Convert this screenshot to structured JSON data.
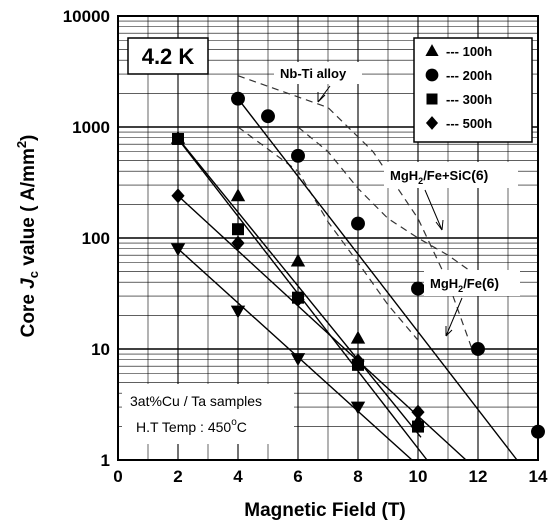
{
  "chart_data": {
    "type": "scatter",
    "xlabel": "Magnetic Field (T)",
    "ylabel_prefix": "Core ",
    "ylabel_italic": "J",
    "ylabel_sub": "c",
    "ylabel_suffix": " value ( A/mm",
    "ylabel_sup": "2",
    "ylabel_end": ")",
    "xlim": [
      0,
      14
    ],
    "ylim": [
      1,
      10000
    ],
    "yscale": "log",
    "grid": true,
    "xticks": [
      "0",
      "2",
      "4",
      "6",
      "8",
      "10",
      "12",
      "14"
    ],
    "yticks": [
      "1",
      "10",
      "100",
      "1000",
      "10000"
    ],
    "temperature_label": "4.2 K",
    "notes": [
      "3at%Cu / Ta samples",
      "H.T Temp : 450"
    ],
    "temp_unit_sup": "o",
    "temp_unit": "C",
    "legend_position": "top-right",
    "series": [
      {
        "name": "--- 100h",
        "marker": "triangle-up",
        "points": [
          [
            2,
            790
          ],
          [
            4,
            240
          ],
          [
            6,
            62
          ],
          [
            8,
            12.5
          ],
          [
            10,
            2.2
          ]
        ]
      },
      {
        "name": "--- 200h",
        "marker": "circle",
        "points": [
          [
            4,
            1800
          ],
          [
            5,
            1250
          ],
          [
            6,
            550
          ],
          [
            8,
            135
          ],
          [
            10,
            35
          ],
          [
            12,
            10
          ],
          [
            14,
            1.8
          ]
        ]
      },
      {
        "name": "--- 300h",
        "marker": "square",
        "points": [
          [
            2,
            780
          ],
          [
            4,
            120
          ],
          [
            6,
            29
          ],
          [
            8,
            7.2
          ],
          [
            10,
            2.0
          ]
        ]
      },
      {
        "name": "--- 500h",
        "marker": "diamond",
        "points": [
          [
            2,
            240
          ],
          [
            4,
            90
          ],
          [
            6,
            28
          ],
          [
            8,
            7.8
          ],
          [
            10,
            2.7
          ]
        ]
      },
      {
        "name": "",
        "marker": "triangle-down",
        "points": [
          [
            2,
            80
          ],
          [
            4,
            22
          ],
          [
            6,
            8.2
          ],
          [
            8,
            3.0
          ]
        ]
      }
    ],
    "fit_lines": [
      {
        "from": [
          4,
          1800
        ],
        "to": [
          13.3,
          1.0
        ]
      },
      {
        "from": [
          2,
          790
        ],
        "to": [
          10.1,
          1.6
        ]
      },
      {
        "from": [
          2,
          780
        ],
        "to": [
          10.3,
          1.0
        ]
      },
      {
        "from": [
          2,
          240
        ],
        "to": [
          11.6,
          1.0
        ]
      },
      {
        "from": [
          2,
          80
        ],
        "to": [
          9.8,
          1.0
        ]
      }
    ],
    "reference_curves": [
      {
        "label": "Nb-Ti alloy",
        "points": [
          [
            4,
            2900
          ],
          [
            7,
            1500
          ],
          [
            8.5,
            600
          ],
          [
            10,
            150
          ],
          [
            11,
            40
          ],
          [
            11.8,
            10
          ]
        ]
      },
      {
        "label_main": "MgH",
        "label_sub": "2",
        "label_rest": "/Fe+SiC",
        "label_ref": "(6)",
        "points": [
          [
            6,
            1000
          ],
          [
            7,
            600
          ],
          [
            8,
            280
          ],
          [
            9,
            150
          ],
          [
            10,
            100
          ],
          [
            11,
            70
          ],
          [
            12,
            45
          ],
          [
            13,
            30
          ]
        ]
      },
      {
        "label_main": "MgH",
        "label_sub": "2",
        "label_rest": "/Fe",
        "label_ref": "(6)",
        "points": [
          [
            4,
            1000
          ],
          [
            6,
            400
          ],
          [
            7,
            140
          ],
          [
            8,
            60
          ],
          [
            9,
            25
          ],
          [
            10,
            12
          ]
        ]
      }
    ]
  }
}
